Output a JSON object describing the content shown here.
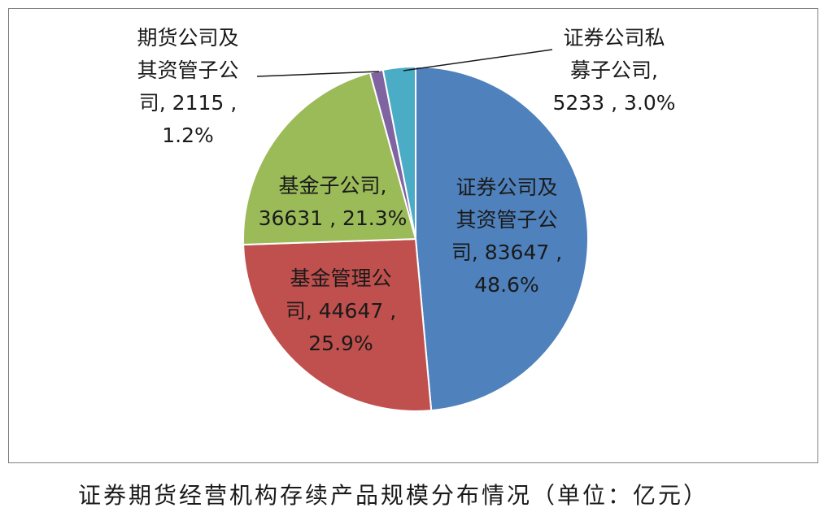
{
  "title": "证券期货经营机构存续产品规模分布情况（单位：亿元）",
  "chart_data": {
    "type": "pie",
    "title": "证券期货经营机构存续产品规模分布情况（单位：亿元）",
    "unit": "亿元",
    "slices": [
      {
        "label_lines": [
          "证券公司及",
          "其资管子公",
          "司, 83647 ,",
          "48.6%"
        ],
        "value": 83647,
        "percent": "48.6%",
        "color": "#4f81bd"
      },
      {
        "label_lines": [
          "基金管理公",
          "司, 44647 ,",
          "25.9%"
        ],
        "value": 44647,
        "percent": "25.9%",
        "color": "#c0504d"
      },
      {
        "label_lines": [
          "基金子公司,",
          "36631 , 21.3%"
        ],
        "value": 36631,
        "percent": "21.3%",
        "color": "#9bbb59"
      },
      {
        "label_lines": [
          "期货公司及",
          "其资管子公",
          "司, 2115 ,",
          "1.2%"
        ],
        "value": 2115,
        "percent": "1.2%",
        "color": "#8064a2"
      },
      {
        "label_lines": [
          "证券公司私",
          "募子公司,",
          "5233 , 3.0%"
        ],
        "value": 5233,
        "percent": "3.0%",
        "color": "#4bacc6"
      }
    ]
  }
}
